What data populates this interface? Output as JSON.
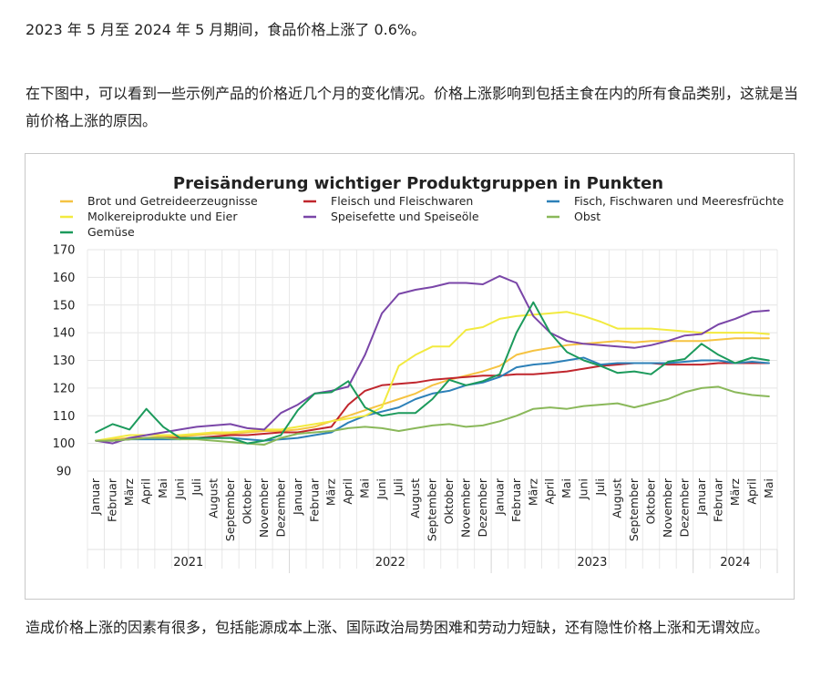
{
  "article": {
    "p1": "2023 年 5 月至 2024 年 5 月期间，食品价格上涨了 0.6%。",
    "p2": "在下图中，可以看到一些示例产品的价格近几个月的变化情况。价格上涨影响到包括主食在内的所有食品类别，这就是当前价格上涨的原因。",
    "p3": "造成价格上涨的因素有很多，包括能源成本上涨、国际政治局势困难和劳动力短缺，还有隐性价格上涨和无谓效应。"
  },
  "chart_data": {
    "type": "line",
    "title": "Preisänderung wichtiger Produktgruppen in Punkten",
    "xlabel": "",
    "ylabel": "",
    "ylim": [
      90,
      170
    ],
    "yticks": [
      90,
      100,
      110,
      120,
      130,
      140,
      150,
      160,
      170
    ],
    "grid": true,
    "legend_position": "top",
    "x": [
      "Januar",
      "Februar",
      "März",
      "April",
      "Mai",
      "Juni",
      "Juli",
      "August",
      "September",
      "Oktober",
      "November",
      "Dezember",
      "Januar",
      "Februar",
      "März",
      "April",
      "Mai",
      "Juni",
      "Juli",
      "August",
      "September",
      "Oktober",
      "November",
      "Dezember",
      "Januar",
      "Februar",
      "März",
      "April",
      "Mai",
      "Juni",
      "Juli",
      "August",
      "September",
      "Oktober",
      "November",
      "Dezember",
      "Januar",
      "Februar",
      "März",
      "April",
      "Mai"
    ],
    "years": [
      {
        "label": "2021",
        "start": 0,
        "end": 11
      },
      {
        "label": "2022",
        "start": 12,
        "end": 23
      },
      {
        "label": "2023",
        "start": 24,
        "end": 35
      },
      {
        "label": "2024",
        "start": 36,
        "end": 40
      }
    ],
    "series": [
      {
        "name": "Brot und Getreideerzeugnisse",
        "color": "#f5c342",
        "values": [
          101,
          101.5,
          102,
          102,
          102.5,
          102.5,
          103,
          103.5,
          103.5,
          104,
          104.5,
          104.5,
          105,
          106,
          108,
          110,
          112,
          114,
          116,
          118,
          121,
          123,
          124.5,
          126,
          128,
          132,
          133.5,
          134.5,
          135.5,
          136,
          136.5,
          137,
          136.5,
          137,
          137,
          137,
          137,
          137.5,
          138,
          138,
          138
        ]
      },
      {
        "name": "Fleisch und Fleischwaren",
        "color": "#c0262d",
        "values": [
          101,
          101,
          101.5,
          102,
          102,
          102,
          102,
          102.5,
          103,
          103,
          103.5,
          104,
          104,
          105,
          106,
          114,
          119,
          121,
          121.5,
          122,
          123,
          123.5,
          124,
          124.5,
          124.5,
          125,
          125,
          125.5,
          126,
          127,
          128,
          128.5,
          129,
          129,
          128.5,
          128.5,
          128.5,
          129,
          129,
          129,
          129
        ]
      },
      {
        "name": "Fisch, Fischwaren und Meeresfrüchte",
        "color": "#2d80b8",
        "values": [
          101,
          101,
          101.5,
          101.5,
          101.5,
          101.5,
          102,
          102,
          102,
          101.5,
          101,
          101.5,
          102,
          103,
          104,
          107.5,
          110,
          111.5,
          113,
          116,
          118,
          119,
          121,
          122,
          124,
          127.5,
          128.5,
          129,
          130,
          131,
          128.5,
          129,
          129,
          129,
          129,
          129.5,
          130,
          130,
          129,
          129.5,
          129
        ]
      },
      {
        "name": "Molkereiprodukte und Eier",
        "color": "#f2ea3f",
        "values": [
          101,
          102,
          103,
          103,
          103,
          103,
          103.5,
          104,
          104,
          104.5,
          105,
          105,
          106,
          107,
          108,
          109,
          110,
          113,
          128,
          132,
          135,
          135,
          141,
          142,
          145,
          146,
          146.5,
          147,
          147.5,
          146,
          144,
          141.5,
          141.5,
          141.5,
          141,
          140.5,
          140,
          140,
          140,
          140,
          139.5
        ]
      },
      {
        "name": "Speisefette und Speiseöle",
        "color": "#7a46a8",
        "values": [
          101,
          100,
          102,
          103,
          104,
          105,
          106,
          106.5,
          107,
          105.5,
          105,
          111,
          114,
          118,
          119,
          120.5,
          132,
          147,
          154,
          155.5,
          156.5,
          158,
          158,
          157.5,
          160.5,
          158,
          146,
          140,
          137,
          136,
          135.5,
          135,
          134.5,
          135.5,
          137,
          139,
          139.5,
          143,
          145,
          147.5,
          148
        ]
      },
      {
        "name": "Obst",
        "color": "#8ab85a",
        "values": [
          101,
          101,
          101.5,
          102,
          102,
          101.5,
          101.5,
          101,
          100.5,
          100,
          99.5,
          102,
          103.5,
          104,
          104.5,
          105.5,
          106,
          105.5,
          104.5,
          105.5,
          106.5,
          107,
          106,
          106.5,
          108,
          110,
          112.5,
          113,
          112.5,
          113.5,
          114,
          114.5,
          113,
          114.5,
          116,
          118.5,
          120,
          120.5,
          118.5,
          117.5,
          117
        ]
      },
      {
        "name": "Gemüse",
        "color": "#1c9a5c",
        "values": [
          104,
          107,
          105,
          112.5,
          106,
          102,
          102,
          102,
          102,
          100,
          101,
          103,
          112,
          118,
          118.5,
          122.5,
          113,
          110,
          111,
          111,
          116,
          123,
          121,
          122.5,
          125,
          140,
          151,
          140,
          133,
          130,
          128,
          125.5,
          126,
          125,
          129.5,
          130.5,
          136,
          132,
          129,
          131,
          130
        ]
      }
    ]
  }
}
